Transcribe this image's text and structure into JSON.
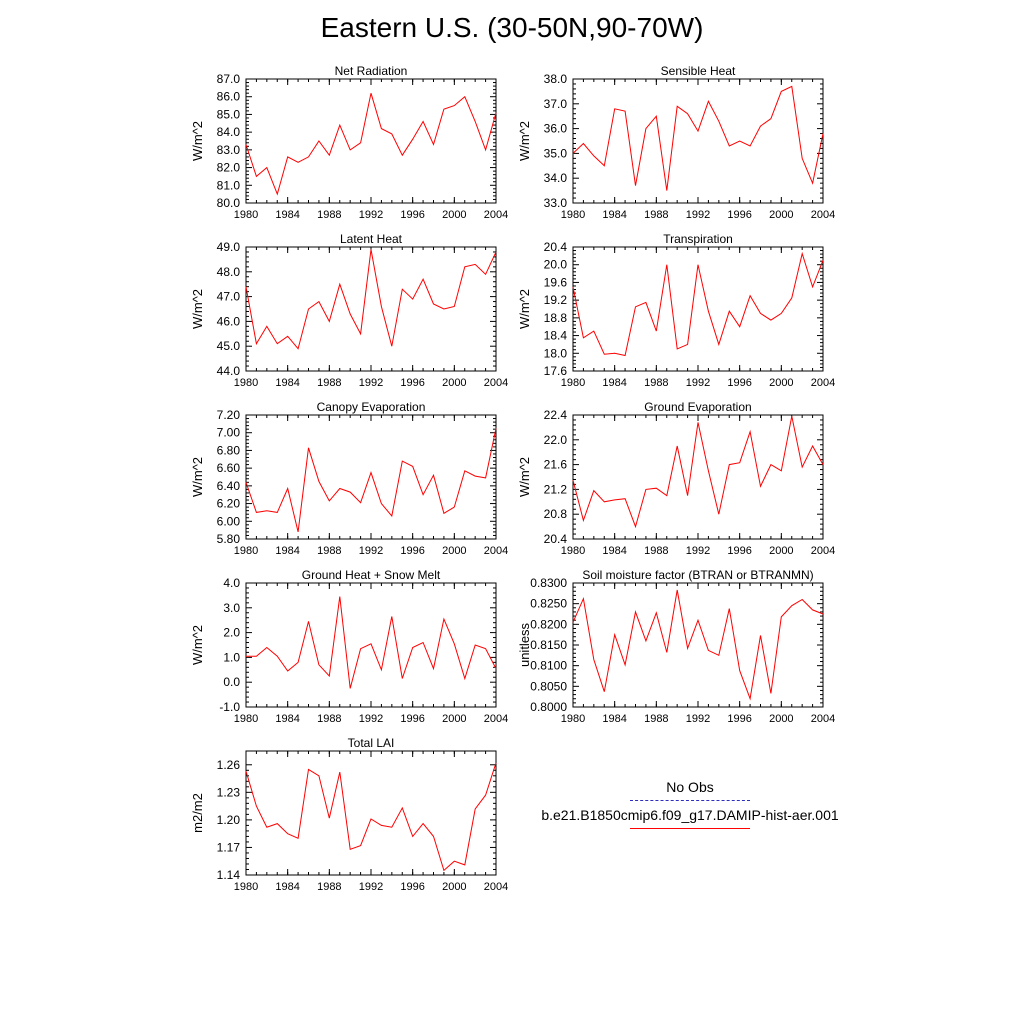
{
  "figure": {
    "title": "Eastern U.S. (30-50N,90-70W)"
  },
  "legend": {
    "entries": [
      {
        "label": "No Obs",
        "style": "dashed",
        "color": "#2d2dbf"
      },
      {
        "label": "b.e21.B1850cmip6.f09_g17.DAMIP-hist-aer.001",
        "style": "solid",
        "color": "#ff0000"
      }
    ]
  },
  "chart_data": [
    {
      "type": "line",
      "title": "Net Radiation",
      "ylabel": "W/m^2",
      "xlim": [
        1980,
        2004
      ],
      "ylim": [
        80.0,
        87.0
      ],
      "xticks": [
        1980,
        1984,
        1988,
        1992,
        1996,
        2000,
        2004
      ],
      "yticks": [
        "80.0",
        "81.0",
        "82.0",
        "83.0",
        "84.0",
        "85.0",
        "86.0",
        "87.0"
      ],
      "x": [
        1980,
        1981,
        1982,
        1983,
        1984,
        1985,
        1986,
        1987,
        1988,
        1989,
        1990,
        1991,
        1992,
        1993,
        1994,
        1995,
        1996,
        1997,
        1998,
        1999,
        2000,
        2001,
        2002,
        2003,
        2004
      ],
      "series": [
        {
          "color": "#ff0000",
          "values": [
            83.3,
            81.5,
            82.0,
            80.5,
            82.6,
            82.3,
            82.6,
            83.5,
            82.7,
            84.4,
            83.0,
            83.4,
            86.2,
            84.2,
            83.9,
            82.7,
            83.6,
            84.6,
            83.3,
            85.3,
            85.5,
            86.0,
            84.6,
            83.0,
            85.1
          ]
        }
      ]
    },
    {
      "type": "line",
      "title": "Sensible Heat",
      "ylabel": "W/m^2",
      "xlim": [
        1980,
        2004
      ],
      "ylim": [
        33.0,
        38.0
      ],
      "xticks": [
        1980,
        1984,
        1988,
        1992,
        1996,
        2000,
        2004
      ],
      "yticks": [
        "33.0",
        "34.0",
        "35.0",
        "36.0",
        "37.0",
        "38.0"
      ],
      "x": [
        1980,
        1981,
        1982,
        1983,
        1984,
        1985,
        1986,
        1987,
        1988,
        1989,
        1990,
        1991,
        1992,
        1993,
        1994,
        1995,
        1996,
        1997,
        1998,
        1999,
        2000,
        2001,
        2002,
        2003,
        2004
      ],
      "series": [
        {
          "color": "#ff0000",
          "values": [
            35.0,
            35.4,
            34.9,
            34.5,
            36.8,
            36.7,
            33.7,
            36.0,
            36.5,
            33.5,
            36.9,
            36.6,
            35.9,
            37.1,
            36.3,
            35.3,
            35.5,
            35.3,
            36.1,
            36.4,
            37.5,
            37.7,
            34.8,
            33.8,
            35.8
          ]
        }
      ]
    },
    {
      "type": "line",
      "title": "Latent Heat",
      "ylabel": "W/m^2",
      "xlim": [
        1980,
        2004
      ],
      "ylim": [
        44.0,
        49.0
      ],
      "xticks": [
        1980,
        1984,
        1988,
        1992,
        1996,
        2000,
        2004
      ],
      "yticks": [
        "44.0",
        "45.0",
        "46.0",
        "47.0",
        "48.0",
        "49.0"
      ],
      "x": [
        1980,
        1981,
        1982,
        1983,
        1984,
        1985,
        1986,
        1987,
        1988,
        1989,
        1990,
        1991,
        1992,
        1993,
        1994,
        1995,
        1996,
        1997,
        1998,
        1999,
        2000,
        2001,
        2002,
        2003,
        2004
      ],
      "series": [
        {
          "color": "#ff0000",
          "values": [
            47.4,
            45.1,
            45.8,
            45.1,
            45.4,
            44.9,
            46.5,
            46.8,
            46.0,
            47.5,
            46.3,
            45.5,
            48.9,
            46.6,
            45.0,
            47.3,
            46.9,
            47.7,
            46.7,
            46.5,
            46.6,
            48.2,
            48.3,
            47.9,
            48.8
          ]
        }
      ]
    },
    {
      "type": "line",
      "title": "Transpiration",
      "ylabel": "W/m^2",
      "xlim": [
        1980,
        2004
      ],
      "ylim": [
        17.6,
        20.4
      ],
      "xticks": [
        1980,
        1984,
        1988,
        1992,
        1996,
        2000,
        2004
      ],
      "yticks": [
        "17.6",
        "18.0",
        "18.4",
        "18.8",
        "19.2",
        "19.6",
        "20.0",
        "20.4"
      ],
      "x": [
        1980,
        1981,
        1982,
        1983,
        1984,
        1985,
        1986,
        1987,
        1988,
        1989,
        1990,
        1991,
        1992,
        1993,
        1994,
        1995,
        1996,
        1997,
        1998,
        1999,
        2000,
        2001,
        2002,
        2003,
        2004
      ],
      "series": [
        {
          "color": "#ff0000",
          "values": [
            19.5,
            18.35,
            18.5,
            17.98,
            18.0,
            17.95,
            19.05,
            19.15,
            18.5,
            20.0,
            18.1,
            18.2,
            20.0,
            18.95,
            18.2,
            18.95,
            18.6,
            19.3,
            18.9,
            18.75,
            18.9,
            19.25,
            20.25,
            19.5,
            20.1
          ]
        }
      ]
    },
    {
      "type": "line",
      "title": "Canopy Evaporation",
      "ylabel": "W/m^2",
      "xlim": [
        1980,
        2004
      ],
      "ylim": [
        5.8,
        7.2
      ],
      "xticks": [
        1980,
        1984,
        1988,
        1992,
        1996,
        2000,
        2004
      ],
      "yticks": [
        "5.80",
        "6.00",
        "6.20",
        "6.40",
        "6.60",
        "6.80",
        "7.00",
        "7.20"
      ],
      "x": [
        1980,
        1981,
        1982,
        1983,
        1984,
        1985,
        1986,
        1987,
        1988,
        1989,
        1990,
        1991,
        1992,
        1993,
        1994,
        1995,
        1996,
        1997,
        1998,
        1999,
        2000,
        2001,
        2002,
        2003,
        2004
      ],
      "series": [
        {
          "color": "#ff0000",
          "values": [
            6.44,
            6.1,
            6.12,
            6.1,
            6.37,
            5.88,
            6.83,
            6.45,
            6.23,
            6.37,
            6.33,
            6.21,
            6.55,
            6.2,
            6.06,
            6.68,
            6.62,
            6.3,
            6.52,
            6.09,
            6.16,
            6.57,
            6.51,
            6.49,
            7.05
          ]
        }
      ]
    },
    {
      "type": "line",
      "title": "Ground Evaporation",
      "ylabel": "W/m^2",
      "xlim": [
        1980,
        2004
      ],
      "ylim": [
        20.4,
        22.4
      ],
      "xticks": [
        1980,
        1984,
        1988,
        1992,
        1996,
        2000,
        2004
      ],
      "yticks": [
        "20.4",
        "20.8",
        "21.2",
        "21.6",
        "22.0",
        "22.4"
      ],
      "x": [
        1980,
        1981,
        1982,
        1983,
        1984,
        1985,
        1986,
        1987,
        1988,
        1989,
        1990,
        1991,
        1992,
        1993,
        1994,
        1995,
        1996,
        1997,
        1998,
        1999,
        2000,
        2001,
        2002,
        2003,
        2004
      ],
      "series": [
        {
          "color": "#ff0000",
          "values": [
            21.35,
            20.7,
            21.18,
            21.0,
            21.03,
            21.05,
            20.6,
            21.2,
            21.22,
            21.1,
            21.9,
            21.1,
            22.28,
            21.5,
            20.8,
            21.6,
            21.63,
            22.13,
            21.25,
            21.6,
            21.5,
            22.38,
            21.56,
            21.9,
            21.6
          ]
        }
      ]
    },
    {
      "type": "line",
      "title": "Ground Heat + Snow Melt",
      "ylabel": "W/m^2",
      "xlim": [
        1980,
        2004
      ],
      "ylim": [
        -1.0,
        4.0
      ],
      "xticks": [
        1980,
        1984,
        1988,
        1992,
        1996,
        2000,
        2004
      ],
      "yticks": [
        "-1.0",
        "0.0",
        "1.0",
        "2.0",
        "3.0",
        "4.0"
      ],
      "x": [
        1980,
        1981,
        1982,
        1983,
        1984,
        1985,
        1986,
        1987,
        1988,
        1989,
        1990,
        1991,
        1992,
        1993,
        1994,
        1995,
        1996,
        1997,
        1998,
        1999,
        2000,
        2001,
        2002,
        2003,
        2004
      ],
      "series": [
        {
          "color": "#ff0000",
          "values": [
            1.05,
            1.05,
            1.4,
            1.05,
            0.45,
            0.8,
            2.45,
            0.7,
            0.25,
            3.45,
            -0.25,
            1.35,
            1.55,
            0.5,
            2.65,
            0.15,
            1.4,
            1.6,
            0.55,
            2.55,
            1.55,
            0.15,
            1.5,
            1.35,
            0.55
          ]
        }
      ]
    },
    {
      "type": "line",
      "title": "Soil moisture factor (BTRAN or BTRANMN)",
      "ylabel": "unitless",
      "xlim": [
        1980,
        2004
      ],
      "ylim": [
        0.8,
        0.83
      ],
      "xticks": [
        1980,
        1984,
        1988,
        1992,
        1996,
        2000,
        2004
      ],
      "yticks": [
        "0.8000",
        "0.8050",
        "0.8100",
        "0.8150",
        "0.8200",
        "0.8250",
        "0.8300"
      ],
      "x": [
        1980,
        1981,
        1982,
        1983,
        1984,
        1985,
        1986,
        1987,
        1988,
        1989,
        1990,
        1991,
        1992,
        1993,
        1994,
        1995,
        1996,
        1997,
        1998,
        1999,
        2000,
        2001,
        2002,
        2003,
        2004
      ],
      "series": [
        {
          "color": "#ff0000",
          "values": [
            0.8205,
            0.8262,
            0.8115,
            0.8037,
            0.8175,
            0.8102,
            0.823,
            0.816,
            0.8228,
            0.8132,
            0.8283,
            0.8142,
            0.821,
            0.8137,
            0.8125,
            0.8238,
            0.8088,
            0.802,
            0.8173,
            0.8033,
            0.8218,
            0.8245,
            0.826,
            0.8235,
            0.8225
          ]
        }
      ]
    },
    {
      "type": "line",
      "title": "Total LAI",
      "ylabel": "m2/m2",
      "xlim": [
        1980,
        2004
      ],
      "ylim": [
        1.14,
        1.275
      ],
      "xticks": [
        1980,
        1984,
        1988,
        1992,
        1996,
        2000,
        2004
      ],
      "yticks": [
        "1.14",
        "1.17",
        "1.20",
        "1.23",
        "1.26"
      ],
      "ytick_values": [
        1.14,
        1.17,
        1.2,
        1.23,
        1.26
      ],
      "x": [
        1980,
        1981,
        1982,
        1983,
        1984,
        1985,
        1986,
        1987,
        1988,
        1989,
        1990,
        1991,
        1992,
        1993,
        1994,
        1995,
        1996,
        1997,
        1998,
        1999,
        2000,
        2001,
        2002,
        2003,
        2004
      ],
      "series": [
        {
          "color": "#ff0000",
          "values": [
            1.253,
            1.215,
            1.192,
            1.196,
            1.185,
            1.18,
            1.255,
            1.248,
            1.202,
            1.252,
            1.168,
            1.172,
            1.201,
            1.194,
            1.192,
            1.213,
            1.182,
            1.196,
            1.182,
            1.145,
            1.155,
            1.151,
            1.212,
            1.227,
            1.262
          ]
        }
      ]
    }
  ]
}
